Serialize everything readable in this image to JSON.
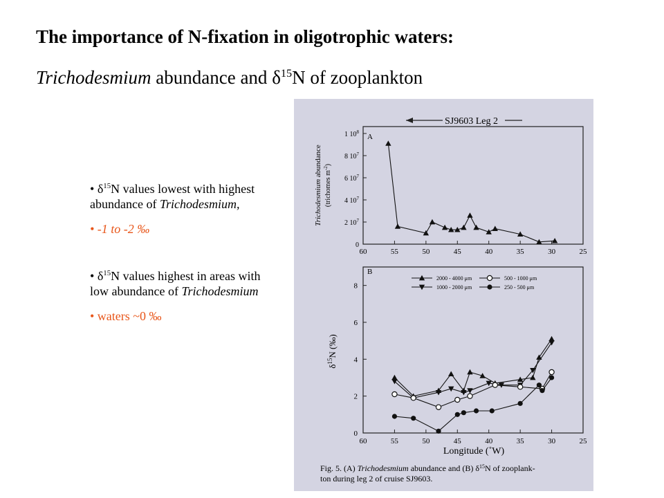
{
  "title": {
    "line1": "The importance of N-fixation in oligotrophic waters:",
    "line2_italic": "Trichodesmium",
    "line2_mid": " abundance and ",
    "delta": "δ",
    "sup15": "15",
    "line2_end": "N of zooplankton"
  },
  "bullets": {
    "group1": {
      "dot": "• ",
      "delta": "δ",
      "sup": "15",
      "text_a": "N values lowest with highest abundance of ",
      "italic": "Trichodesmium,",
      "orange": "• -1 to -2 ‰"
    },
    "group2": {
      "dot": "• ",
      "delta": "δ",
      "sup": "15",
      "text_a": "N values highest in areas with low abundance of ",
      "italic": "Trichodesmium",
      "orange": "• waters ~0 ‰"
    }
  },
  "colors": {
    "accent": "#e8561a",
    "figure_bg": "#d4d4e2"
  },
  "chart_data": [
    {
      "type": "line",
      "panel_label": "A",
      "banner": "SJ9603 Leg 2",
      "ylabel_italic": "Trichodesmium",
      "ylabel_rest": " abundance",
      "ylabel_units": "(trichomes m",
      "ylabel_units_sup": "-2",
      "ylabel_units_end": ")",
      "ylim": [
        0,
        100000000
      ],
      "ytick_values": [
        0,
        20000000,
        40000000,
        60000000,
        80000000,
        100000000
      ],
      "ytick_labels": [
        "0",
        "2 10",
        "4 10",
        "6 10",
        "8 10",
        "1 10"
      ],
      "ytick_exps": [
        "",
        "7",
        "7",
        "7",
        "7",
        "8"
      ],
      "xlim": [
        60,
        25
      ],
      "xticks": [
        60,
        55,
        50,
        45,
        40,
        35,
        30,
        25
      ],
      "series": [
        {
          "marker": "triangle",
          "x": [
            56,
            54.5,
            50,
            49,
            47,
            46,
            45,
            44,
            43,
            42,
            40,
            39,
            35,
            32,
            29.5
          ],
          "y": [
            91000000,
            16000000,
            10000000,
            20000000,
            15000000,
            13000000,
            13000000,
            15000000,
            26000000,
            15000000,
            11000000,
            14000000,
            9000000,
            2000000,
            3000000
          ]
        }
      ]
    },
    {
      "type": "line",
      "panel_label": "B",
      "ylabel_delta": "δ",
      "ylabel_sup": "15",
      "ylabel_rest": "N (‰)",
      "xlabel": "Longitude (˚W)",
      "ylim": [
        0,
        9
      ],
      "yticks": [
        0,
        2,
        4,
        6,
        8
      ],
      "xlim": [
        60,
        25
      ],
      "xticks": [
        60,
        55,
        50,
        45,
        40,
        35,
        30,
        25
      ],
      "legend": [
        {
          "name": "2000 - 4000 μm",
          "marker": "triangle-up"
        },
        {
          "name": "1000 - 2000 μm",
          "marker": "triangle-down"
        },
        {
          "name": "500 - 1000 μm",
          "marker": "circle-open"
        },
        {
          "name": "250 - 500 μm",
          "marker": "circle-filled"
        }
      ],
      "series": [
        {
          "name": "2000 - 4000 μm",
          "marker": "triangle-up",
          "x": [
            55,
            52,
            48,
            46,
            44,
            43,
            41,
            39,
            35,
            33,
            32,
            30
          ],
          "y": [
            3.0,
            2.0,
            2.3,
            3.2,
            2.3,
            3.3,
            3.1,
            2.7,
            2.9,
            3.0,
            4.1,
            5.1
          ]
        },
        {
          "name": "1000 - 2000 μm",
          "marker": "triangle-down",
          "x": [
            55,
            52,
            48,
            46,
            44,
            43,
            40,
            38,
            35,
            33,
            30
          ],
          "y": [
            2.8,
            1.9,
            2.2,
            2.4,
            2.2,
            2.3,
            2.7,
            2.6,
            2.6,
            3.4,
            4.9
          ]
        },
        {
          "name": "500 - 1000 μm",
          "marker": "circle-open",
          "x": [
            55,
            52,
            48,
            45,
            43,
            39,
            35,
            31.5,
            30
          ],
          "y": [
            2.1,
            1.9,
            1.4,
            1.8,
            2.0,
            2.6,
            2.5,
            2.4,
            3.3
          ]
        },
        {
          "name": "250 - 500 μm",
          "marker": "circle-filled",
          "x": [
            55,
            52,
            48,
            45,
            44,
            42,
            39.5,
            35,
            32,
            31.5,
            30
          ],
          "y": [
            0.9,
            0.8,
            0.1,
            1.0,
            1.1,
            1.2,
            1.2,
            1.6,
            2.6,
            2.3,
            3.0
          ]
        }
      ]
    }
  ],
  "caption": {
    "fig": "Fig. 5. (A) ",
    "italic": "Trichodesmium",
    "mid": " abundance and (B) ",
    "delta": "δ",
    "sup": "15",
    "rest": "N of zooplank-",
    "line2": "ton during leg 2 of cruise SJ9603."
  }
}
